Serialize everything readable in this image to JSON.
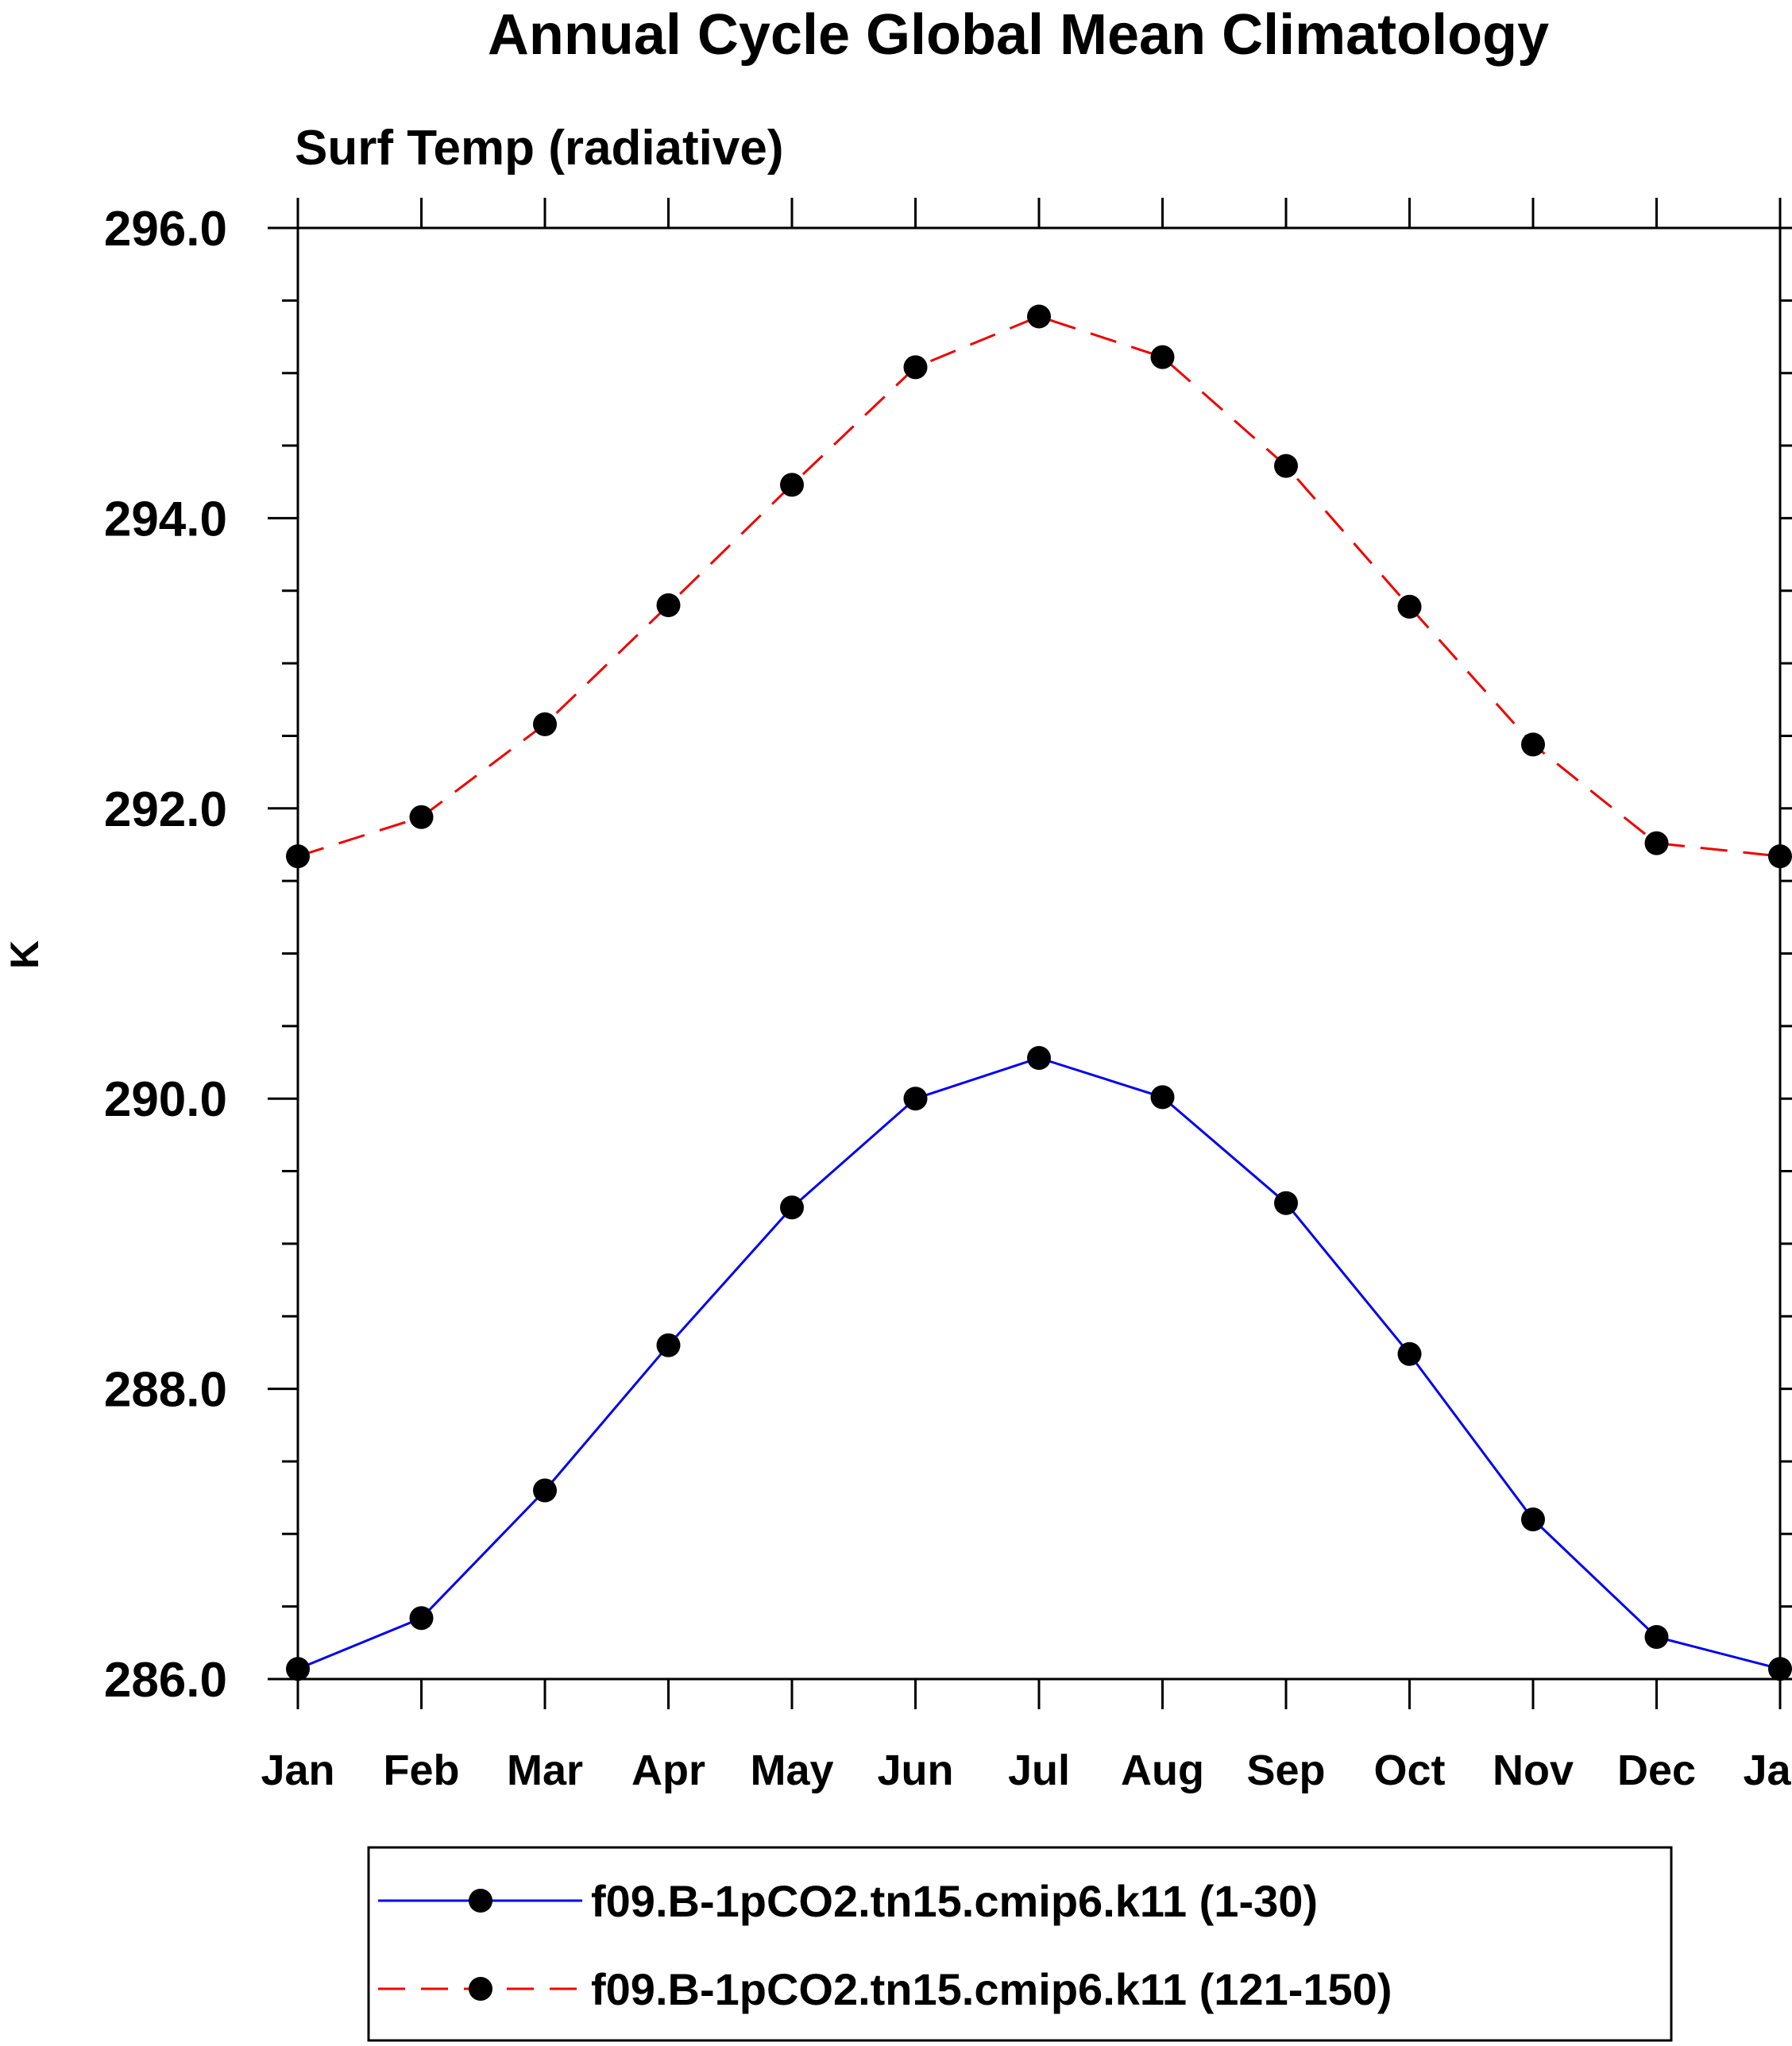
{
  "chart_data": {
    "type": "line",
    "title": "Annual Cycle Global Mean Climatology",
    "subtitle": "Surf Temp (radiative)",
    "xlabel": "",
    "ylabel": "K",
    "categories": [
      "Jan",
      "Feb",
      "Mar",
      "Apr",
      "May",
      "Jun",
      "Jul",
      "Aug",
      "Sep",
      "Oct",
      "Nov",
      "Dec",
      "Jan"
    ],
    "ylim": [
      286.0,
      296.0
    ],
    "yticks": [
      286.0,
      288.0,
      290.0,
      292.0,
      294.0,
      296.0
    ],
    "ytick_labels": [
      "286.0",
      "288.0",
      "290.0",
      "292.0",
      "294.0",
      "296.0"
    ],
    "y_minor_step": 0.5,
    "grid": false,
    "legend_position": "bottom",
    "series": [
      {
        "name": "f09.B-1pCO2.tn15.cmip6.k11 (1-30)",
        "color": "#0000ee",
        "line_style": "solid",
        "marker": "filled-circle",
        "values": [
          286.07,
          286.42,
          287.3,
          288.3,
          289.25,
          290.0,
          290.28,
          290.01,
          289.28,
          288.24,
          287.1,
          286.29,
          286.07
        ]
      },
      {
        "name": "f09.B-1pCO2.tn15.cmip6.k11 (121-150)",
        "color": "#ee0000",
        "line_style": "dashed",
        "marker": "filled-circle",
        "values": [
          291.67,
          291.94,
          292.58,
          293.4,
          294.23,
          295.04,
          295.39,
          295.11,
          294.36,
          293.39,
          292.44,
          291.76,
          291.67
        ]
      }
    ]
  }
}
